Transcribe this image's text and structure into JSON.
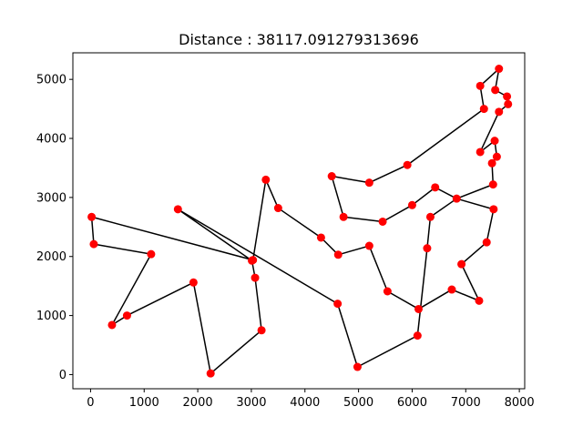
{
  "chart_data": {
    "type": "line",
    "title": "Distance : 38117.091279313696",
    "xlabel": "",
    "ylabel": "",
    "xlim": [
      -330,
      8100
    ],
    "ylim": [
      -240,
      5450
    ],
    "x_ticks": [
      0,
      1000,
      2000,
      3000,
      4000,
      5000,
      6000,
      7000,
      8000
    ],
    "y_ticks": [
      0,
      1000,
      2000,
      3000,
      4000,
      5000
    ],
    "grid": false,
    "line_color": "#000000",
    "marker_color": "#ff0000",
    "route": [
      [
        20,
        2670
      ],
      [
        60,
        2210
      ],
      [
        1130,
        2040
      ],
      [
        400,
        840
      ],
      [
        680,
        1000
      ],
      [
        1920,
        1560
      ],
      [
        2240,
        20
      ],
      [
        3190,
        750
      ],
      [
        3070,
        1640
      ],
      [
        3010,
        1930
      ],
      [
        1630,
        2800
      ],
      [
        4610,
        1200
      ],
      [
        4980,
        130
      ],
      [
        6100,
        660
      ],
      [
        6280,
        2140
      ],
      [
        6340,
        2670
      ],
      [
        6830,
        2980
      ],
      [
        7520,
        2800
      ],
      [
        7390,
        2240
      ],
      [
        6920,
        1870
      ],
      [
        7250,
        1250
      ],
      [
        6740,
        1440
      ],
      [
        6120,
        1110
      ],
      [
        5540,
        1410
      ],
      [
        5200,
        2180
      ],
      [
        4620,
        2030
      ],
      [
        4300,
        2320
      ],
      [
        3500,
        2820
      ],
      [
        3270,
        3300
      ],
      [
        3030,
        1940
      ],
      [
        20,
        2670
      ]
    ],
    "extra_points": [
      [
        4500,
        3360
      ],
      [
        5200,
        3250
      ],
      [
        5910,
        3550
      ],
      [
        7340,
        4500
      ],
      [
        7270,
        4890
      ],
      [
        7620,
        5180
      ],
      [
        7550,
        4820
      ],
      [
        7770,
        4710
      ],
      [
        7790,
        4580
      ],
      [
        7620,
        4450
      ],
      [
        7540,
        3960
      ],
      [
        7270,
        3770
      ],
      [
        7490,
        3580
      ],
      [
        7580,
        3690
      ],
      [
        7510,
        3220
      ],
      [
        6430,
        3170
      ],
      [
        6000,
        2870
      ],
      [
        5450,
        2590
      ],
      [
        4720,
        2670
      ]
    ],
    "extra_path": [
      [
        4720,
        2670
      ],
      [
        5450,
        2590
      ],
      [
        6000,
        2870
      ],
      [
        6430,
        3170
      ],
      [
        6830,
        2980
      ],
      [
        7510,
        3220
      ],
      [
        7490,
        3580
      ],
      [
        7580,
        3690
      ],
      [
        7540,
        3960
      ],
      [
        7270,
        3770
      ],
      [
        7620,
        4450
      ],
      [
        7790,
        4580
      ],
      [
        7770,
        4710
      ],
      [
        7550,
        4820
      ],
      [
        7620,
        5180
      ],
      [
        7270,
        4890
      ],
      [
        7340,
        4500
      ],
      [
        5910,
        3550
      ],
      [
        5200,
        3250
      ],
      [
        4500,
        3360
      ],
      [
        4720,
        2670
      ]
    ]
  }
}
